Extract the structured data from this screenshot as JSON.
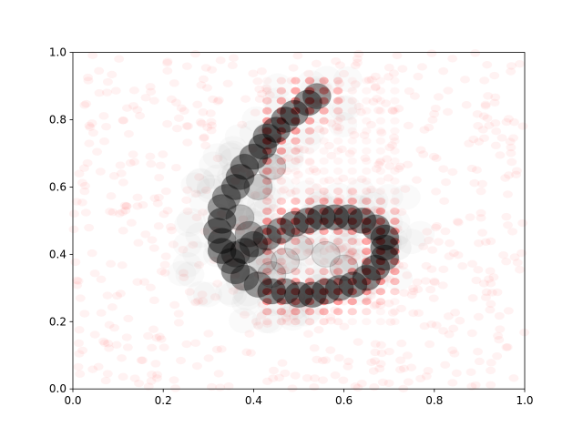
{
  "chart_data": {
    "type": "scatter",
    "title": "",
    "xlabel": "",
    "ylabel": "",
    "xlim": [
      0,
      1
    ],
    "ylim": [
      0,
      1
    ],
    "grid": false,
    "xticks": [
      "0.0",
      "0.2",
      "0.4",
      "0.6",
      "0.8",
      "1.0"
    ],
    "yticks": [
      "0.0",
      "0.2",
      "0.4",
      "0.6",
      "0.8",
      "1.0"
    ],
    "series": [
      {
        "marker_color": "#ff0000",
        "description_kind": "grid-and-noise",
        "grid_x_range": [
          0.43,
          0.74
        ],
        "grid_y_range": [
          0.2,
          0.93
        ],
        "grid_step": 0.0314,
        "digit_shape_segments": [
          [
            0.53,
            0.87
          ],
          [
            0.49,
            0.82
          ],
          [
            0.45,
            0.77
          ],
          [
            0.42,
            0.72
          ],
          [
            0.39,
            0.67
          ],
          [
            0.37,
            0.62
          ],
          [
            0.35,
            0.56
          ],
          [
            0.33,
            0.5
          ],
          [
            0.33,
            0.43
          ],
          [
            0.34,
            0.37
          ],
          [
            0.37,
            0.32
          ],
          [
            0.42,
            0.29
          ],
          [
            0.48,
            0.28
          ],
          [
            0.55,
            0.28
          ],
          [
            0.61,
            0.3
          ],
          [
            0.66,
            0.34
          ],
          [
            0.69,
            0.4
          ],
          [
            0.69,
            0.45
          ],
          [
            0.66,
            0.49
          ],
          [
            0.61,
            0.51
          ],
          [
            0.54,
            0.51
          ],
          [
            0.47,
            0.49
          ],
          [
            0.41,
            0.45
          ],
          [
            0.37,
            0.41
          ]
        ]
      },
      {
        "marker_color": "#000000",
        "description_kind": "large-circles",
        "points": [
          [
            0.54,
            0.87
          ],
          [
            0.52,
            0.85
          ],
          [
            0.49,
            0.82
          ],
          [
            0.47,
            0.8
          ],
          [
            0.45,
            0.77
          ],
          [
            0.43,
            0.75
          ],
          [
            0.42,
            0.72
          ],
          [
            0.4,
            0.69
          ],
          [
            0.38,
            0.66
          ],
          [
            0.37,
            0.63
          ],
          [
            0.36,
            0.6
          ],
          [
            0.34,
            0.57
          ],
          [
            0.33,
            0.54
          ],
          [
            0.33,
            0.5
          ],
          [
            0.32,
            0.47
          ],
          [
            0.33,
            0.44
          ],
          [
            0.33,
            0.41
          ],
          [
            0.35,
            0.38
          ],
          [
            0.36,
            0.35
          ],
          [
            0.38,
            0.33
          ],
          [
            0.41,
            0.31
          ],
          [
            0.44,
            0.29
          ],
          [
            0.47,
            0.29
          ],
          [
            0.5,
            0.28
          ],
          [
            0.53,
            0.28
          ],
          [
            0.56,
            0.29
          ],
          [
            0.59,
            0.3
          ],
          [
            0.62,
            0.31
          ],
          [
            0.65,
            0.33
          ],
          [
            0.67,
            0.36
          ],
          [
            0.69,
            0.39
          ],
          [
            0.69,
            0.42
          ],
          [
            0.69,
            0.45
          ],
          [
            0.67,
            0.48
          ],
          [
            0.64,
            0.5
          ],
          [
            0.61,
            0.51
          ],
          [
            0.58,
            0.51
          ],
          [
            0.55,
            0.51
          ],
          [
            0.52,
            0.5
          ],
          [
            0.49,
            0.49
          ],
          [
            0.46,
            0.47
          ],
          [
            0.43,
            0.45
          ],
          [
            0.4,
            0.43
          ],
          [
            0.38,
            0.41
          ],
          [
            0.36,
            0.4
          ],
          [
            0.44,
            0.34
          ],
          [
            0.47,
            0.38
          ],
          [
            0.5,
            0.42
          ],
          [
            0.56,
            0.4
          ],
          [
            0.6,
            0.36
          ],
          [
            0.39,
            0.46
          ],
          [
            0.42,
            0.38
          ],
          [
            0.37,
            0.51
          ],
          [
            0.41,
            0.6
          ],
          [
            0.44,
            0.66
          ]
        ]
      }
    ]
  }
}
